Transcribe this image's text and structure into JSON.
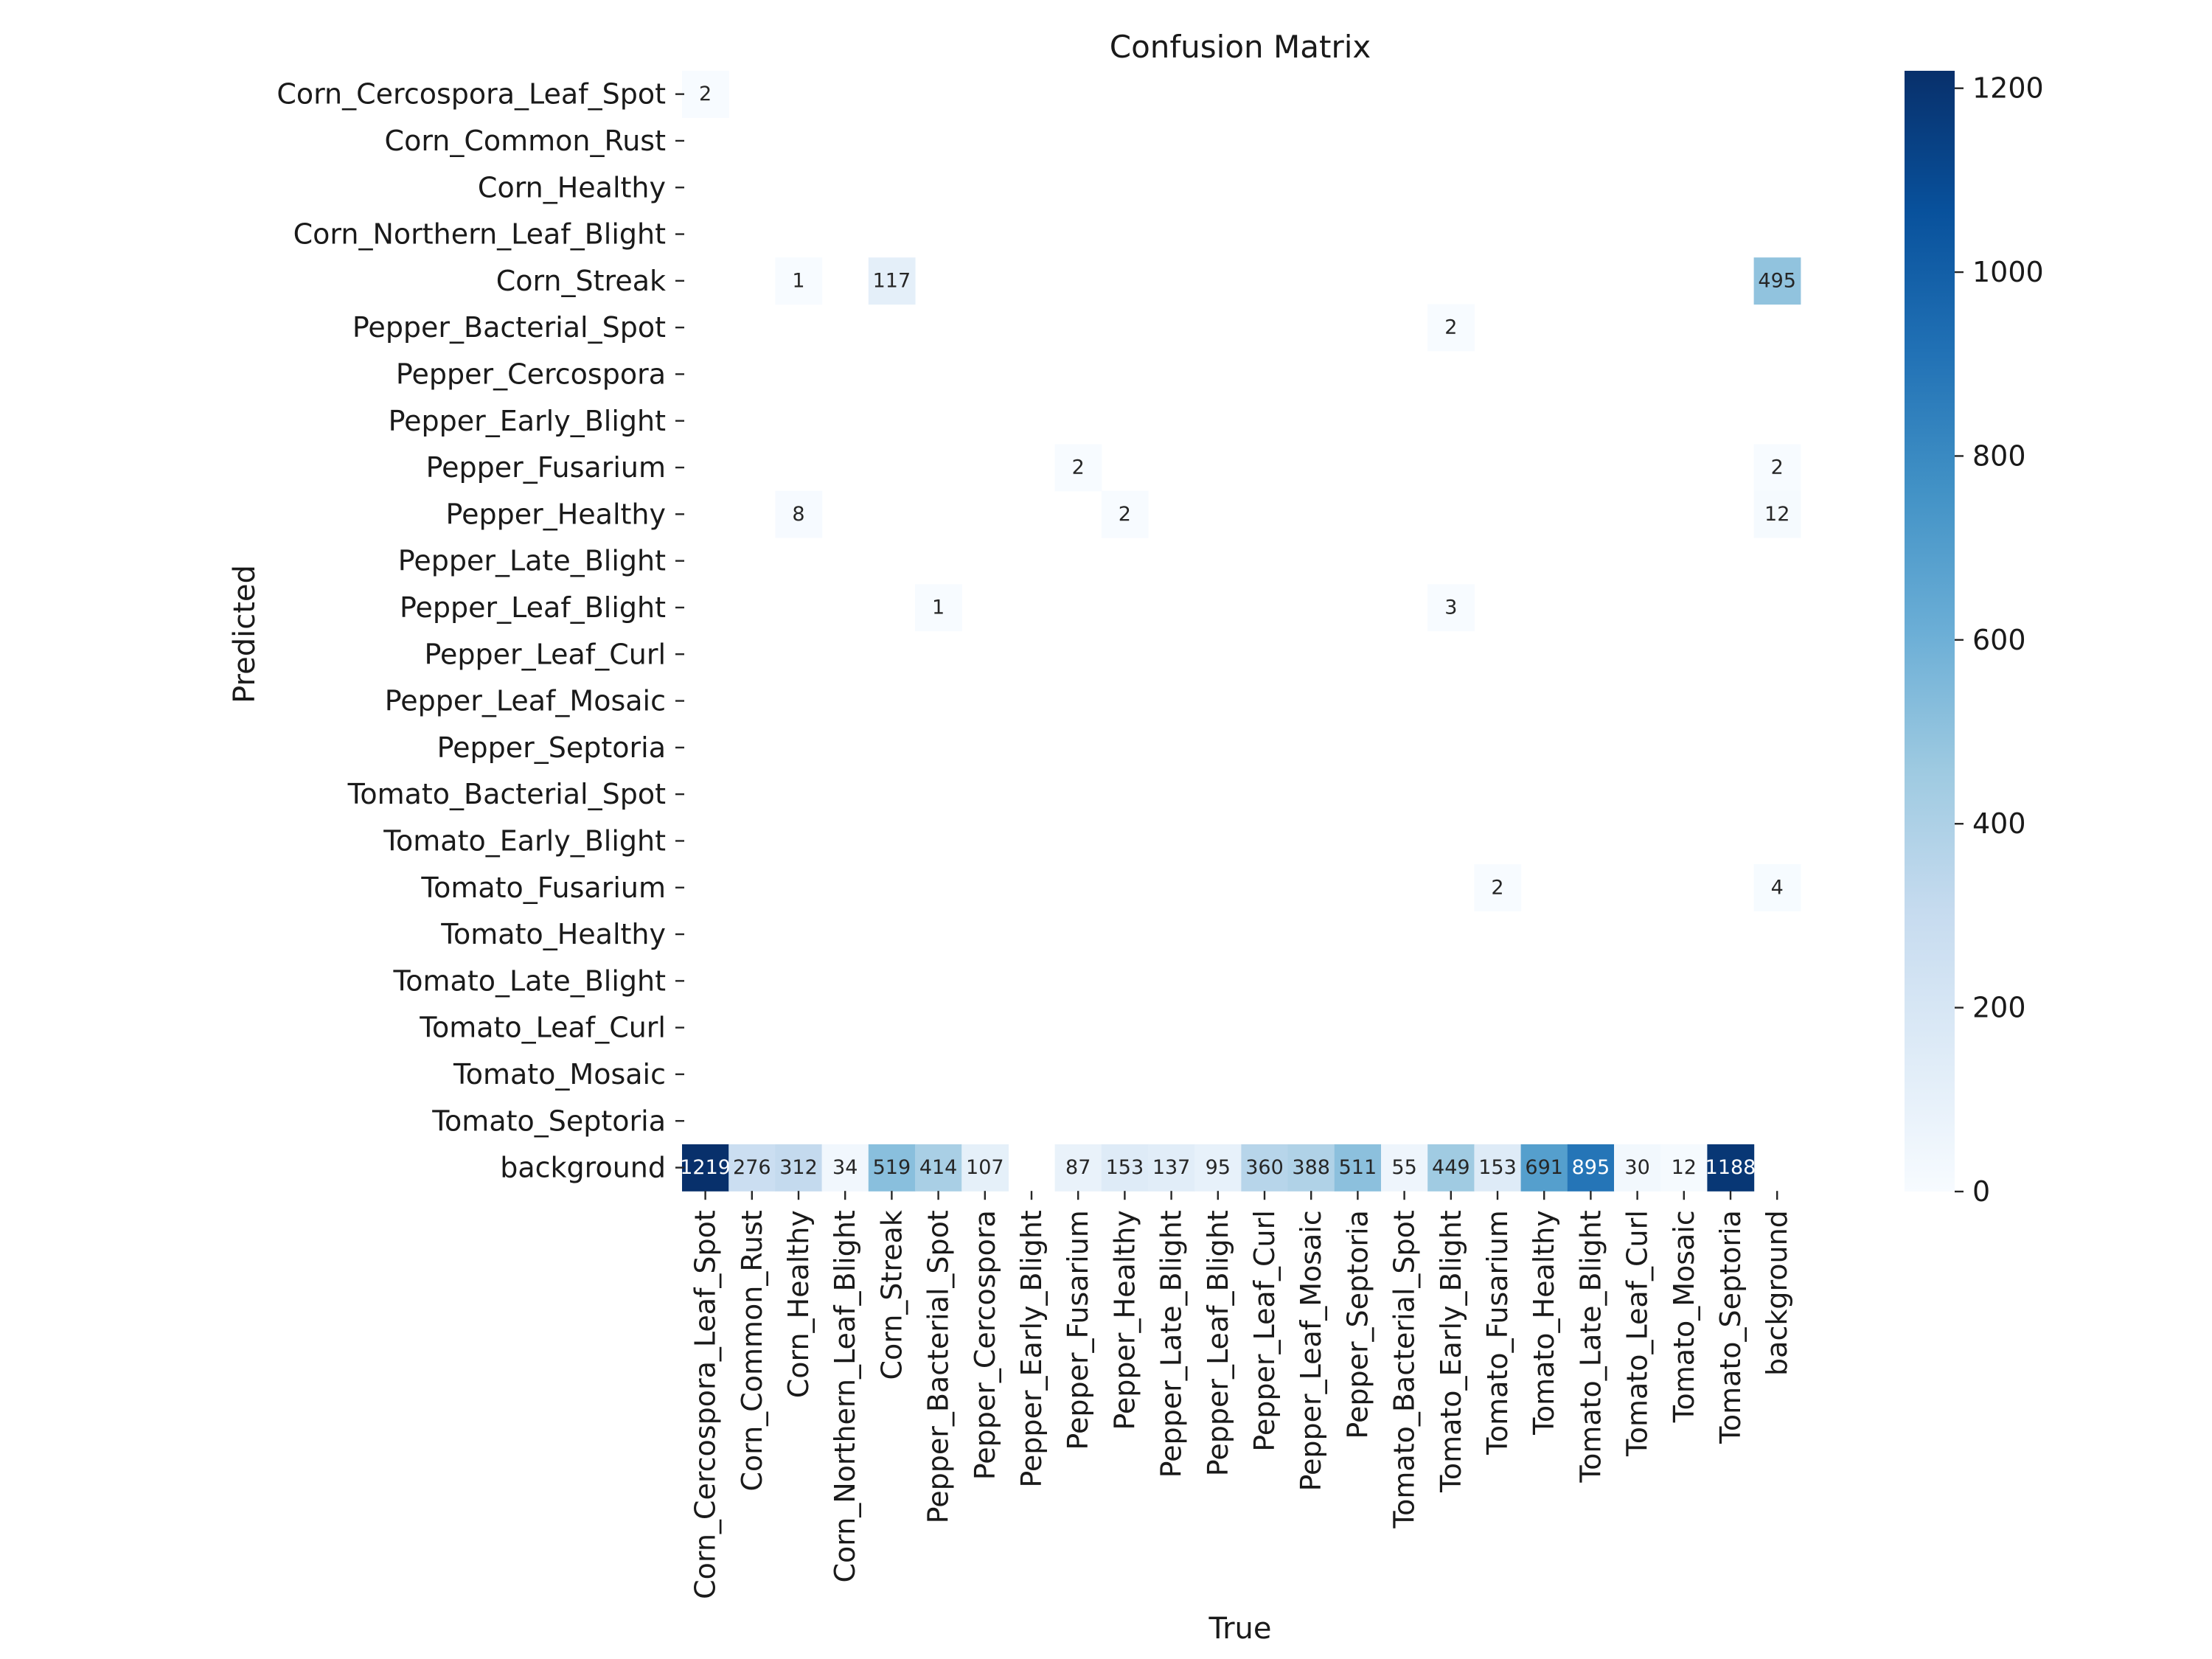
{
  "chart_data": {
    "type": "heatmap",
    "title": "Confusion Matrix",
    "xlabel": "True",
    "ylabel": "Predicted",
    "row_labels": [
      "Corn_Cercospora_Leaf_Spot",
      "Corn_Common_Rust",
      "Corn_Healthy",
      "Corn_Northern_Leaf_Blight",
      "Corn_Streak",
      "Pepper_Bacterial_Spot",
      "Pepper_Cercospora",
      "Pepper_Early_Blight",
      "Pepper_Fusarium",
      "Pepper_Healthy",
      "Pepper_Late_Blight",
      "Pepper_Leaf_Blight",
      "Pepper_Leaf_Curl",
      "Pepper_Leaf_Mosaic",
      "Pepper_Septoria",
      "Tomato_Bacterial_Spot",
      "Tomato_Early_Blight",
      "Tomato_Fusarium",
      "Tomato_Healthy",
      "Tomato_Late_Blight",
      "Tomato_Leaf_Curl",
      "Tomato_Mosaic",
      "Tomato_Septoria",
      "background"
    ],
    "col_labels": [
      "Corn_Cercospora_Leaf_Spot",
      "Corn_Common_Rust",
      "Corn_Healthy",
      "Corn_Northern_Leaf_Blight",
      "Corn_Streak",
      "Pepper_Bacterial_Spot",
      "Pepper_Cercospora",
      "Pepper_Early_Blight",
      "Pepper_Fusarium",
      "Pepper_Healthy",
      "Pepper_Late_Blight",
      "Pepper_Leaf_Blight",
      "Pepper_Leaf_Curl",
      "Pepper_Leaf_Mosaic",
      "Pepper_Septoria",
      "Tomato_Bacterial_Spot",
      "Tomato_Early_Blight",
      "Tomato_Fusarium",
      "Tomato_Healthy",
      "Tomato_Late_Blight",
      "Tomato_Leaf_Curl",
      "Tomato_Mosaic",
      "Tomato_Septoria",
      "background"
    ],
    "cells": [
      {
        "row": 0,
        "col": 0,
        "value": 2
      },
      {
        "row": 4,
        "col": 2,
        "value": 1
      },
      {
        "row": 4,
        "col": 4,
        "value": 117
      },
      {
        "row": 4,
        "col": 23,
        "value": 495
      },
      {
        "row": 5,
        "col": 16,
        "value": 2
      },
      {
        "row": 8,
        "col": 8,
        "value": 2
      },
      {
        "row": 8,
        "col": 23,
        "value": 2
      },
      {
        "row": 9,
        "col": 2,
        "value": 8
      },
      {
        "row": 9,
        "col": 9,
        "value": 2
      },
      {
        "row": 9,
        "col": 23,
        "value": 12
      },
      {
        "row": 11,
        "col": 5,
        "value": 1
      },
      {
        "row": 11,
        "col": 16,
        "value": 3
      },
      {
        "row": 17,
        "col": 17,
        "value": 2
      },
      {
        "row": 17,
        "col": 23,
        "value": 4
      },
      {
        "row": 23,
        "col": 0,
        "value": 1219
      },
      {
        "row": 23,
        "col": 1,
        "value": 276
      },
      {
        "row": 23,
        "col": 2,
        "value": 312
      },
      {
        "row": 23,
        "col": 3,
        "value": 34
      },
      {
        "row": 23,
        "col": 4,
        "value": 519
      },
      {
        "row": 23,
        "col": 5,
        "value": 414
      },
      {
        "row": 23,
        "col": 6,
        "value": 107
      },
      {
        "row": 23,
        "col": 8,
        "value": 87
      },
      {
        "row": 23,
        "col": 9,
        "value": 153
      },
      {
        "row": 23,
        "col": 10,
        "value": 137
      },
      {
        "row": 23,
        "col": 11,
        "value": 95
      },
      {
        "row": 23,
        "col": 12,
        "value": 360
      },
      {
        "row": 23,
        "col": 13,
        "value": 388
      },
      {
        "row": 23,
        "col": 14,
        "value": 511
      },
      {
        "row": 23,
        "col": 15,
        "value": 55
      },
      {
        "row": 23,
        "col": 16,
        "value": 449
      },
      {
        "row": 23,
        "col": 17,
        "value": 153
      },
      {
        "row": 23,
        "col": 18,
        "value": 691
      },
      {
        "row": 23,
        "col": 19,
        "value": 895
      },
      {
        "row": 23,
        "col": 20,
        "value": 30
      },
      {
        "row": 23,
        "col": 21,
        "value": 12
      },
      {
        "row": 23,
        "col": 22,
        "value": 1188
      }
    ],
    "colorbar": {
      "colormap": "Blues",
      "range": [
        0,
        1219
      ],
      "ticks": [
        0,
        200,
        400,
        600,
        800,
        1000,
        1200
      ]
    },
    "grid": false
  }
}
